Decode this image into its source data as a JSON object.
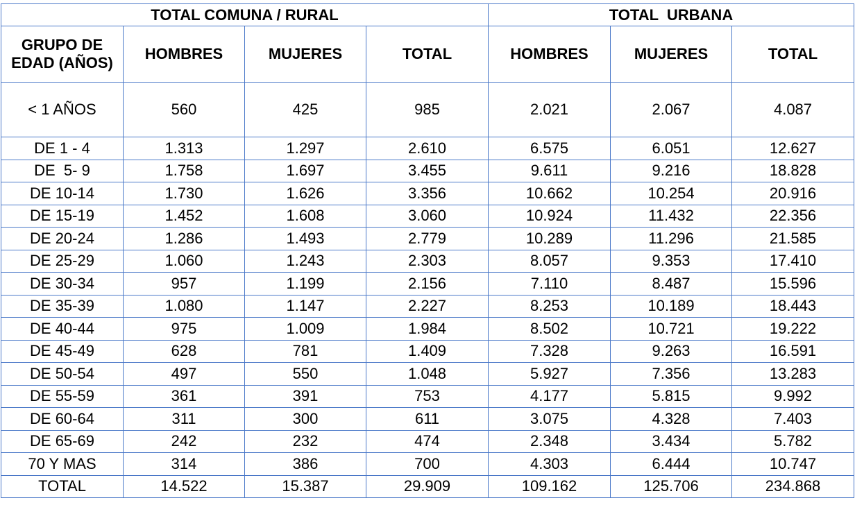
{
  "table": {
    "group_headers": [
      {
        "text": "TOTAL COMUNA / RURAL",
        "span": 4
      },
      {
        "text": "TOTAL  URBANA",
        "span": 3
      }
    ],
    "columns": [
      "GRUPO DE EDAD (AÑOS)",
      "HOMBRES",
      "MUJERES",
      "TOTAL",
      "HOMBRES",
      "MUJERES",
      "TOTAL"
    ],
    "rows": [
      [
        "< 1 AÑOS",
        "560",
        "425",
        "985",
        "2.021",
        "2.067",
        "4.087"
      ],
      [
        "DE 1 - 4",
        "1.313",
        "1.297",
        "2.610",
        "6.575",
        "6.051",
        "12.627"
      ],
      [
        "DE  5- 9",
        "1.758",
        "1.697",
        "3.455",
        "9.611",
        "9.216",
        "18.828"
      ],
      [
        "DE 10-14",
        "1.730",
        "1.626",
        "3.356",
        "10.662",
        "10.254",
        "20.916"
      ],
      [
        "DE 15-19",
        "1.452",
        "1.608",
        "3.060",
        "10.924",
        "11.432",
        "22.356"
      ],
      [
        "DE 20-24",
        "1.286",
        "1.493",
        "2.779",
        "10.289",
        "11.296",
        "21.585"
      ],
      [
        "DE 25-29",
        "1.060",
        "1.243",
        "2.303",
        "8.057",
        "9.353",
        "17.410"
      ],
      [
        "DE 30-34",
        "957",
        "1.199",
        "2.156",
        "7.110",
        "8.487",
        "15.596"
      ],
      [
        "DE 35-39",
        "1.080",
        "1.147",
        "2.227",
        "8.253",
        "10.189",
        "18.443"
      ],
      [
        "DE 40-44",
        "975",
        "1.009",
        "1.984",
        "8.502",
        "10.721",
        "19.222"
      ],
      [
        "DE 45-49",
        "628",
        "781",
        "1.409",
        "7.328",
        "9.263",
        "16.591"
      ],
      [
        "DE 50-54",
        "497",
        "550",
        "1.048",
        "5.927",
        "7.356",
        "13.283"
      ],
      [
        "DE 55-59",
        "361",
        "391",
        "753",
        "4.177",
        "5.815",
        "9.992"
      ],
      [
        "DE 60-64",
        "311",
        "300",
        "611",
        "3.075",
        "4.328",
        "7.403"
      ],
      [
        "DE 65-69",
        "242",
        "232",
        "474",
        "2.348",
        "3.434",
        "5.782"
      ],
      [
        "70 Y MAS",
        "314",
        "386",
        "700",
        "4.303",
        "6.444",
        "10.747"
      ],
      [
        "TOTAL",
        "14.522",
        "15.387",
        "29.909",
        "109.162",
        "125.706",
        "234.868"
      ]
    ]
  }
}
